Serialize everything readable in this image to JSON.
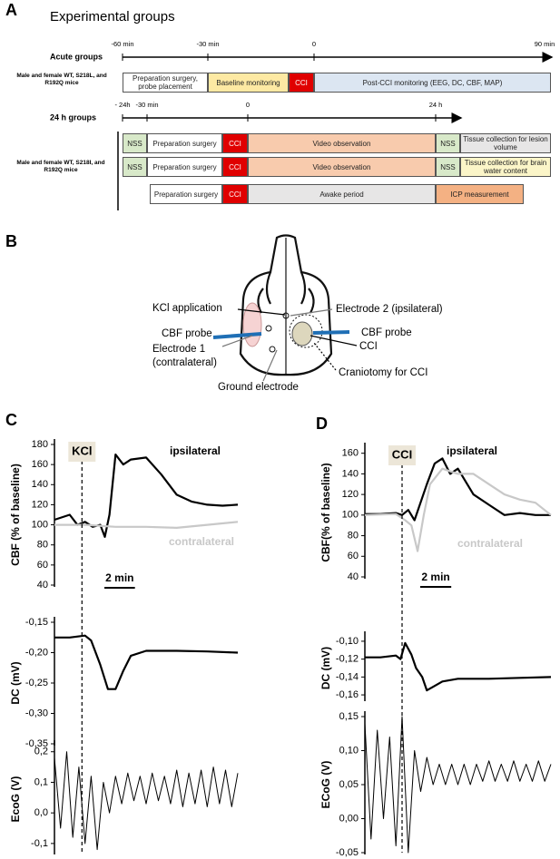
{
  "panel_a": {
    "letter": "A",
    "title": "Experimental groups",
    "acute": {
      "label": "Acute groups",
      "ticks": [
        "-60 min",
        "-30 min",
        "0",
        "90 min"
      ],
      "subjects": "Male and female WT, S218L, and R192Q mice",
      "boxes": [
        "Preparation surgery, probe placement",
        "Baseline monitoring",
        "CCI",
        "Post-CCI monitoring (EEG, DC, CBF, MAP)"
      ]
    },
    "h24": {
      "label": "24 h groups",
      "ticks": [
        "- 24h",
        "-30 min",
        "0",
        "24 h"
      ],
      "subjects": "Male and female WT, S218I, and R192Q mice",
      "rows": [
        [
          "NSS",
          "Preparation surgery",
          "CCI",
          "Video observation",
          "NSS",
          "Tissue collection for lesion volume"
        ],
        [
          "NSS",
          "Preparation surgery",
          "CCI",
          "Video observation",
          "NSS",
          "Tissue collection for brain water content"
        ],
        [
          "Preparation surgery",
          "CCI",
          "Awake period",
          "ICP measurement"
        ]
      ]
    }
  },
  "panel_b": {
    "letter": "B",
    "labels": [
      "KCl application",
      "Electrode 2 (ipsilateral)",
      "CBF probe",
      "CBF probe",
      "Electrode 1",
      "(contralateral)",
      "CCI",
      "Ground electrode",
      "Craniotomy for CCI"
    ]
  },
  "chart_data": [
    {
      "type": "line",
      "panel": "C",
      "ylabel": "CBF (% of baseline)",
      "ylim": [
        40,
        180
      ],
      "yticks": [
        40,
        60,
        80,
        100,
        120,
        140,
        160,
        180
      ],
      "xlim": [
        0,
        12
      ],
      "event": {
        "label": "KCl",
        "x": 1.8
      },
      "scale_bar": {
        "label": "2 min",
        "value": 2
      },
      "series": [
        {
          "name": "ipsilateral",
          "color": "#000000",
          "x": [
            0,
            1,
            1.5,
            2,
            2.5,
            3,
            3.3,
            3.6,
            4,
            4.5,
            5,
            6,
            7,
            8,
            9,
            10,
            11,
            12
          ],
          "values": [
            105,
            110,
            100,
            103,
            98,
            100,
            88,
            110,
            170,
            160,
            165,
            167,
            150,
            130,
            123,
            120,
            119,
            120
          ]
        },
        {
          "name": "contralateral",
          "color": "#c8c8c8",
          "x": [
            0,
            2,
            4,
            6,
            8,
            10,
            12
          ],
          "values": [
            100,
            100,
            98,
            98,
            97,
            100,
            103
          ]
        }
      ]
    },
    {
      "type": "line",
      "ylabel": "DC (mV)",
      "ylim": [
        -0.35,
        -0.15
      ],
      "xlim": [
        0,
        12
      ],
      "yticks": [
        {
          "value": -0.15,
          "label": "-0,15"
        },
        {
          "value": -0.2,
          "label": "-0,20"
        },
        {
          "value": -0.25,
          "label": "-0,25"
        },
        {
          "value": -0.3,
          "label": "-0,30"
        },
        {
          "value": -0.35,
          "label": "-0,35"
        }
      ],
      "series": [
        {
          "color": "#000000",
          "x": [
            0,
            1,
            2,
            2.4,
            3,
            3.5,
            4,
            4.5,
            5,
            6,
            8,
            10,
            12
          ],
          "values": [
            -0.175,
            -0.175,
            -0.172,
            -0.18,
            -0.22,
            -0.26,
            -0.26,
            -0.23,
            -0.205,
            -0.197,
            -0.197,
            -0.198,
            -0.2
          ]
        }
      ]
    },
    {
      "type": "line",
      "ylabel": "EcoG (V)",
      "ylim": [
        -0.13,
        0.22
      ],
      "xlim": [
        0,
        12
      ],
      "yticks": [
        {
          "value": 0.2,
          "label": "0,2"
        },
        {
          "value": 0.1,
          "label": "0,1"
        },
        {
          "value": 0,
          "label": "0,0"
        },
        {
          "value": -0.1,
          "label": "-0,1"
        }
      ],
      "series": [
        {
          "color": "#000000",
          "x": [
            0,
            0.4,
            0.8,
            1.2,
            1.6,
            2,
            2.4,
            2.8,
            3.2,
            3.6,
            4,
            4.4,
            4.8,
            5.2,
            5.6,
            6,
            6.4,
            6.8,
            7.2,
            7.6,
            8,
            8.4,
            8.8,
            9.2,
            9.6,
            10,
            10.4,
            10.8,
            11.2,
            11.6,
            12
          ],
          "values": [
            0.18,
            -0.05,
            0.2,
            -0.08,
            0.15,
            -0.1,
            0.12,
            -0.12,
            0.1,
            0.0,
            0.12,
            0.03,
            0.13,
            0.04,
            0.12,
            0.03,
            0.13,
            0.04,
            0.12,
            0.03,
            0.14,
            0.02,
            0.13,
            0.03,
            0.14,
            0.02,
            0.15,
            0.03,
            0.14,
            0.02,
            0.13
          ]
        }
      ]
    },
    {
      "type": "line",
      "panel": "D",
      "ylabel": "CBF(% of baseline)",
      "ylim": [
        40,
        165
      ],
      "yticks": [
        40,
        60,
        80,
        100,
        120,
        140,
        160
      ],
      "xlim": [
        0,
        12
      ],
      "event": {
        "label": "CCI",
        "x": 2.4
      },
      "scale_bar": {
        "label": "2 min",
        "value": 2
      },
      "series": [
        {
          "name": "ipsilateral",
          "color": "#000000",
          "x": [
            0,
            1,
            2,
            2.4,
            2.8,
            3.2,
            4,
            4.5,
            5,
            5.5,
            6,
            7,
            8,
            9,
            10,
            11,
            12
          ],
          "values": [
            101,
            101,
            102,
            100,
            105,
            95,
            130,
            150,
            155,
            140,
            145,
            120,
            110,
            100,
            102,
            100,
            100
          ]
        },
        {
          "name": "contralateral",
          "color": "#c8c8c8",
          "x": [
            0,
            2,
            2.6,
            3,
            3.4,
            3.8,
            4.2,
            5,
            6,
            7,
            8,
            9,
            10,
            11,
            12
          ],
          "values": [
            100,
            101,
            95,
            90,
            65,
            100,
            130,
            145,
            140,
            140,
            130,
            120,
            115,
            112,
            100
          ]
        }
      ]
    },
    {
      "type": "line",
      "ylabel": "DC (mV)",
      "ylim": [
        -0.165,
        -0.095
      ],
      "xlim": [
        0,
        12
      ],
      "yticks": [
        {
          "value": -0.1,
          "label": "-0,10"
        },
        {
          "value": -0.12,
          "label": "-0,12"
        },
        {
          "value": -0.14,
          "label": "-0,14"
        },
        {
          "value": -0.16,
          "label": "-0,16"
        }
      ],
      "series": [
        {
          "color": "#000000",
          "x": [
            0,
            1,
            2,
            2.3,
            2.6,
            3,
            3.3,
            3.7,
            4,
            4.5,
            5,
            6,
            8,
            10,
            12
          ],
          "values": [
            -0.118,
            -0.118,
            -0.116,
            -0.12,
            -0.102,
            -0.115,
            -0.13,
            -0.14,
            -0.155,
            -0.15,
            -0.145,
            -0.142,
            -0.142,
            -0.141,
            -0.14
          ]
        }
      ]
    },
    {
      "type": "line",
      "ylabel": "ECoG (V)",
      "ylim": [
        -0.05,
        0.15
      ],
      "xlim": [
        0,
        12
      ],
      "yticks": [
        {
          "value": 0.15,
          "label": "0,15"
        },
        {
          "value": 0.1,
          "label": "0,10"
        },
        {
          "value": 0.05,
          "label": "0,05"
        },
        {
          "value": 0,
          "label": "0,00"
        },
        {
          "value": -0.05,
          "label": "-0,05"
        }
      ],
      "series": [
        {
          "color": "#000000",
          "x": [
            0,
            0.4,
            0.8,
            1.2,
            1.6,
            2,
            2.4,
            2.8,
            3.2,
            3.6,
            4,
            4.4,
            4.8,
            5.2,
            5.6,
            6,
            6.4,
            6.8,
            7.2,
            7.6,
            8,
            8.4,
            8.8,
            9.2,
            9.6,
            10,
            10.4,
            10.8,
            11.2,
            11.6,
            12
          ],
          "values": [
            0.14,
            -0.03,
            0.13,
            0.0,
            0.12,
            -0.04,
            0.15,
            -0.05,
            0.1,
            0.04,
            0.09,
            0.05,
            0.08,
            0.05,
            0.08,
            0.05,
            0.08,
            0.05,
            0.08,
            0.055,
            0.085,
            0.055,
            0.08,
            0.055,
            0.085,
            0.055,
            0.08,
            0.055,
            0.085,
            0.055,
            0.08
          ]
        }
      ]
    }
  ]
}
